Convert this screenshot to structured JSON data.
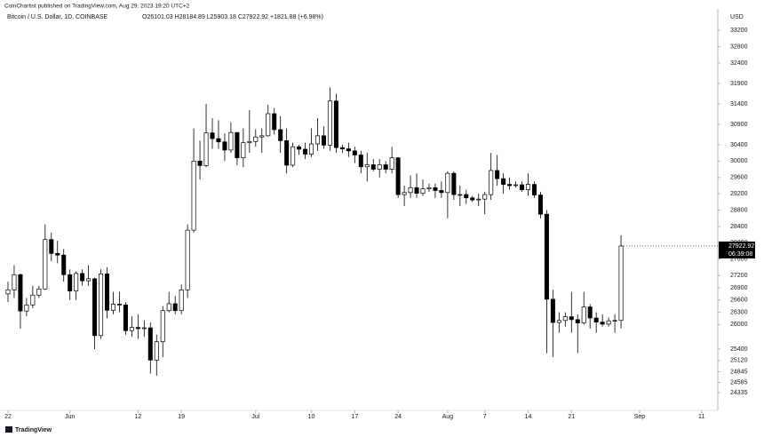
{
  "publisher_line": "CoinChartist published on TradingView.com, Aug 29, 2023 19:20 UTC+2",
  "brand": "TradingView",
  "chart_data": {
    "type": "candlestick",
    "title": "Bitcoin / U.S. Dollar, 1D, COINBASE",
    "ohlc_legend": "O26101.03  H28184.89  L25903.18  C27922.92  +1821.88 (+6.98%)",
    "currency": "USD",
    "countdown": "06:39:08",
    "up_color": "#ffffff",
    "down_color": "#000000",
    "x": [
      0,
      1,
      2,
      3,
      4,
      5,
      6,
      7,
      8,
      9,
      10,
      11,
      12,
      13,
      14,
      15,
      16,
      17,
      18,
      19,
      20,
      21,
      22,
      23,
      24,
      25,
      26,
      27,
      28,
      29,
      30,
      31,
      32,
      33,
      34,
      35,
      36,
      37,
      38,
      39,
      40,
      41,
      42,
      43,
      44,
      45,
      46,
      47,
      48,
      49,
      50,
      51,
      52,
      53,
      54,
      55,
      56,
      57,
      58,
      59,
      60,
      61,
      62,
      63,
      64,
      65,
      66,
      67,
      68,
      69,
      70,
      71,
      72,
      73,
      74,
      75,
      76,
      77,
      78,
      79,
      80,
      81,
      82,
      83,
      84,
      85,
      86,
      87,
      88,
      89,
      90,
      91,
      92,
      93,
      94,
      95,
      96,
      97,
      98,
      99
    ],
    "open": [
      26750,
      26850,
      27220,
      26330,
      26480,
      26720,
      26870,
      28080,
      27740,
      27700,
      27220,
      26820,
      27250,
      27070,
      27120,
      25730,
      27240,
      26350,
      26500,
      26480,
      25850,
      25930,
      25900,
      25920,
      25130,
      25580,
      26340,
      26510,
      26340,
      26850,
      28310,
      30000,
      29890,
      30690,
      30550,
      30470,
      30270,
      30700,
      30080,
      30450,
      30480,
      30590,
      30620,
      31160,
      30770,
      30500,
      29900,
      30350,
      30290,
      30170,
      30420,
      30620,
      30390,
      31470,
      30330,
      30300,
      30250,
      30150,
      29860,
      29910,
      29800,
      29910,
      29800,
      30080,
      29180,
      29230,
      29350,
      29210,
      29320,
      29350,
      29280,
      29230,
      29700,
      29180,
      29180,
      29100,
      29050,
      29070,
      29180,
      29770,
      29570,
      29430,
      29400,
      29420,
      29300,
      29430,
      29170,
      28700,
      26620,
      26050,
      26100,
      26190,
      26120,
      26040,
      26430,
      26160,
      26060,
      26010,
      26090,
      26101.03
    ],
    "high": [
      27050,
      27450,
      27250,
      26650,
      26950,
      26950,
      28450,
      28250,
      28050,
      27850,
      27350,
      27300,
      27350,
      27450,
      27150,
      27350,
      27400,
      26800,
      26800,
      26550,
      26200,
      26250,
      26100,
      26050,
      25750,
      26450,
      26800,
      26700,
      26980,
      28450,
      30800,
      30500,
      31400,
      31050,
      31000,
      30680,
      30950,
      30700,
      30800,
      31250,
      30780,
      30800,
      31380,
      31300,
      31100,
      30800,
      30450,
      30400,
      30450,
      30800,
      31050,
      30850,
      31800,
      31650,
      30400,
      30450,
      30350,
      30250,
      30200,
      30050,
      30050,
      30000,
      30350,
      30100,
      29400,
      29650,
      29700,
      29550,
      29450,
      29450,
      29500,
      29750,
      29750,
      29400,
      29300,
      29150,
      29200,
      29250,
      30200,
      30150,
      29700,
      29600,
      29500,
      29500,
      29700,
      29500,
      29250,
      28800,
      26850,
      26300,
      26300,
      26800,
      26250,
      26800,
      26500,
      26300,
      26250,
      26170,
      26250,
      28184.89
    ],
    "low": [
      26550,
      26650,
      25900,
      26200,
      26400,
      26650,
      26850,
      27550,
      27500,
      27050,
      26600,
      26600,
      26950,
      26950,
      25400,
      25650,
      26150,
      26250,
      26300,
      25750,
      25700,
      25650,
      25700,
      24800,
      24750,
      25200,
      26300,
      26250,
      26250,
      26650,
      28250,
      29550,
      29850,
      30300,
      30300,
      30000,
      30200,
      29900,
      29850,
      30200,
      30350,
      30200,
      30600,
      30650,
      30200,
      29700,
      29850,
      30150,
      30050,
      30100,
      30250,
      30300,
      30250,
      30200,
      30200,
      30100,
      29950,
      29700,
      29500,
      29750,
      29600,
      29700,
      29700,
      29100,
      28900,
      29100,
      29100,
      29150,
      29250,
      29100,
      29100,
      28600,
      29050,
      28900,
      28950,
      29000,
      28900,
      28700,
      29050,
      29400,
      29200,
      29300,
      29350,
      29250,
      29150,
      29100,
      28600,
      25300,
      25200,
      25800,
      25950,
      25800,
      25300,
      26000,
      25900,
      25800,
      25950,
      25950,
      25800,
      25903.18
    ],
    "close": [
      26850,
      27220,
      26330,
      26480,
      26720,
      26870,
      28080,
      27740,
      27700,
      27220,
      26820,
      27250,
      27070,
      27120,
      25730,
      27240,
      26350,
      26500,
      26480,
      25850,
      25930,
      25900,
      25920,
      25130,
      25580,
      26340,
      26510,
      26340,
      26850,
      28310,
      30000,
      29890,
      30690,
      30550,
      30470,
      30270,
      30700,
      30080,
      30450,
      30480,
      30590,
      30620,
      31160,
      30770,
      30500,
      29900,
      30350,
      30290,
      30170,
      30420,
      30620,
      30390,
      31470,
      30330,
      30300,
      30250,
      30150,
      29860,
      29910,
      29800,
      29910,
      29800,
      30080,
      29180,
      29230,
      29350,
      29210,
      29320,
      29350,
      29280,
      29230,
      29700,
      29180,
      29180,
      29100,
      29050,
      29070,
      29180,
      29770,
      29570,
      29430,
      29400,
      29420,
      29300,
      29430,
      29170,
      28700,
      26620,
      26050,
      26100,
      26190,
      26120,
      26040,
      26430,
      26160,
      26060,
      26010,
      26090,
      26100,
      27922.92
    ],
    "xlim": [
      -1.29,
      114.63
    ],
    "xticks": [
      {
        "value": 0,
        "label": "22"
      },
      {
        "value": 10,
        "label": "Jun"
      },
      {
        "value": 21,
        "label": "12"
      },
      {
        "value": 28,
        "label": "19"
      },
      {
        "value": 40,
        "label": "Jul"
      },
      {
        "value": 49,
        "label": "10"
      },
      {
        "value": 56,
        "label": "17"
      },
      {
        "value": 63,
        "label": "24"
      },
      {
        "value": 71,
        "label": "Aug"
      },
      {
        "value": 77,
        "label": "7"
      },
      {
        "value": 84,
        "label": "14"
      },
      {
        "value": 91,
        "label": "21"
      },
      {
        "value": 102,
        "label": "Sep"
      },
      {
        "value": 112,
        "label": "11"
      }
    ],
    "ylim": [
      23900,
      33290
    ],
    "yticks": [
      33200,
      32800,
      32400,
      31900,
      31400,
      30900,
      30400,
      30000,
      29600,
      29200,
      28800,
      28400,
      28000,
      27600,
      27200,
      26900,
      26600,
      26300,
      26000,
      25400,
      25120,
      24845,
      24585,
      24335
    ]
  }
}
